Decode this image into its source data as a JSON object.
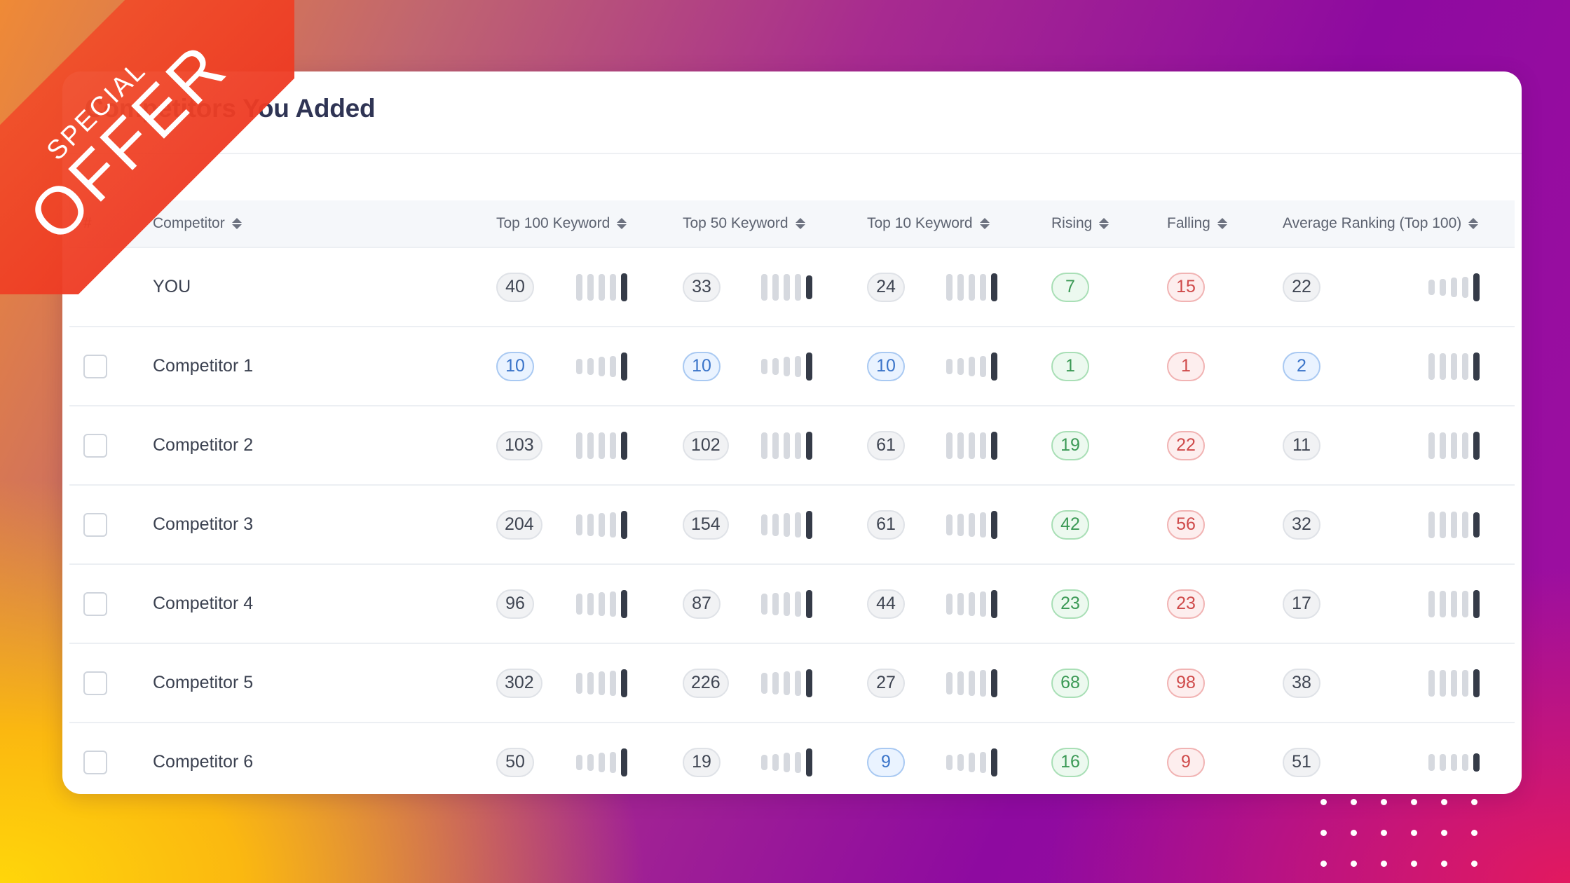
{
  "promo": {
    "special": "SPECIAL",
    "offer": "OFFER"
  },
  "card": {
    "title": "Competitors You Added"
  },
  "table": {
    "headers": {
      "index": "#",
      "competitor": "Competitor",
      "top100": "Top 100 Keyword",
      "top50": "Top 50 Keyword",
      "top10": "Top 10 Keyword",
      "rising": "Rising",
      "falling": "Falling",
      "avg": "Average Ranking (Top 100)"
    },
    "rows": [
      {
        "name": "YOU",
        "top100": "40",
        "top50": "33",
        "top10": "24",
        "rising": "7",
        "falling": "15",
        "avg": "22"
      },
      {
        "name": "Competitor 1",
        "top100": "10",
        "top50": "10",
        "top10": "10",
        "rising": "1",
        "falling": "1",
        "avg": "2"
      },
      {
        "name": "Competitor 2",
        "top100": "103",
        "top50": "102",
        "top10": "61",
        "rising": "19",
        "falling": "22",
        "avg": "11"
      },
      {
        "name": "Competitor 3",
        "top100": "204",
        "top50": "154",
        "top10": "61",
        "rising": "42",
        "falling": "56",
        "avg": "32"
      },
      {
        "name": "Competitor 4",
        "top100": "96",
        "top50": "87",
        "top10": "44",
        "rising": "23",
        "falling": "23",
        "avg": "17"
      },
      {
        "name": "Competitor 5",
        "top100": "302",
        "top50": "226",
        "top10": "27",
        "rising": "68",
        "falling": "98",
        "avg": "38"
      },
      {
        "name": "Competitor 6",
        "top100": "50",
        "top50": "19",
        "top10": "9",
        "rising": "16",
        "falling": "9",
        "avg": "51"
      }
    ]
  },
  "colors": {
    "accent_blue": "#3a74c9",
    "rising_green": "#3b9955",
    "falling_red": "#cf4a4a",
    "ribbon": "#f04e2a"
  }
}
